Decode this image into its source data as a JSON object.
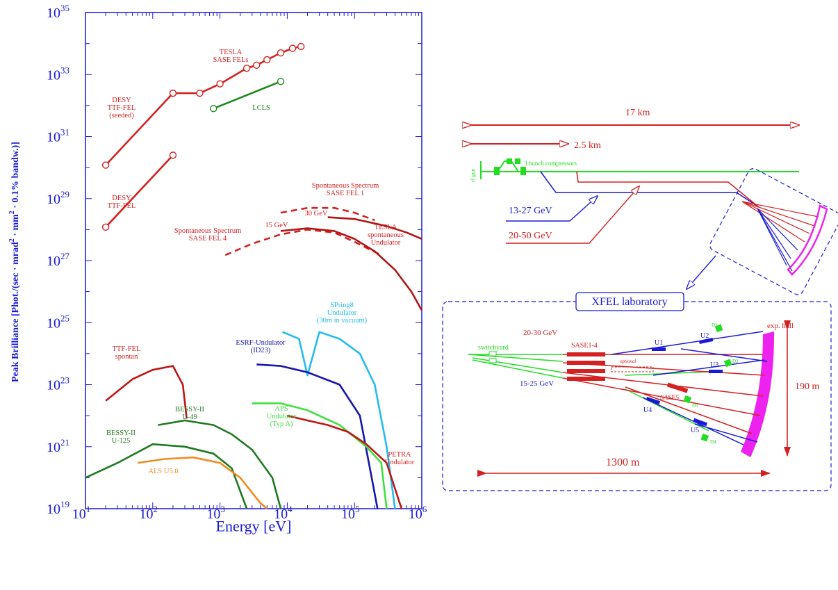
{
  "chart_data": [
    {
      "type": "line",
      "xlabel": "Energy [eV]",
      "ylabel": "Peak Brilliance [Phot./(sec · mrad",
      "ylabel_sup": "2",
      "ylabel_mid": " · mm",
      "ylabel_sup2": "2",
      "ylabel_end": " · 0.1% bandw.)]",
      "x_scale": "log",
      "y_scale": "log",
      "xlim": [
        10,
        1000000
      ],
      "ylim": [
        1e+19,
        1e+35
      ],
      "x_ticks": [
        {
          "base": "10",
          "exp": "1",
          "value": 10
        },
        {
          "base": "10",
          "exp": "2",
          "value": 100
        },
        {
          "base": "10",
          "exp": "3",
          "value": 1000
        },
        {
          "base": "10",
          "exp": "4",
          "value": 10000
        },
        {
          "base": "10",
          "exp": "5",
          "value": 100000
        },
        {
          "base": "10",
          "exp": "6",
          "value": 1000000
        }
      ],
      "y_ticks": [
        {
          "base": "10",
          "exp": "19",
          "value": 19
        },
        {
          "base": "10",
          "exp": "21",
          "value": 21
        },
        {
          "base": "10",
          "exp": "23",
          "value": 23
        },
        {
          "base": "10",
          "exp": "25",
          "value": 25
        },
        {
          "base": "10",
          "exp": "27",
          "value": 27
        },
        {
          "base": "10",
          "exp": "29",
          "value": 29
        },
        {
          "base": "10",
          "exp": "31",
          "value": 31
        },
        {
          "base": "10",
          "exp": "33",
          "value": 33
        },
        {
          "base": "10",
          "exp": "35",
          "value": 35
        }
      ],
      "series": [
        {
          "name": "TESLA SASE FELs",
          "color": "#d42020",
          "style": "solid",
          "markers": true,
          "points": [
            [
              200,
              2.5e+32
            ],
            [
              500,
              2.5e+32
            ],
            [
              1000,
              5e+32
            ],
            [
              2500,
              1.6e+33
            ],
            [
              3500,
              2e+33
            ],
            [
              5000,
              3e+33
            ],
            [
              8000,
              5e+33
            ],
            [
              12000,
              7e+33
            ],
            [
              16000,
              8e+33
            ]
          ]
        },
        {
          "name": "DESY TTF-FEL (seeded)",
          "color": "#d42020",
          "style": "solid",
          "markers": true,
          "points": [
            [
              20,
              1.2e+30
            ],
            [
              200,
              2.5e+32
            ]
          ]
        },
        {
          "name": "DESY TTF-FEL",
          "color": "#d42020",
          "style": "solid",
          "markers": true,
          "points": [
            [
              20,
              1.2e+28
            ],
            [
              200,
              2.5e+30
            ]
          ]
        },
        {
          "name": "LCLS",
          "color": "#1f8a1f",
          "style": "solid",
          "markers": true,
          "points": [
            [
              800,
              8e+31
            ],
            [
              8000,
              6e+32
            ]
          ]
        },
        {
          "name": "Spontaneous Spectrum SASE FEL 1",
          "color": "#d42020",
          "style": "dashed",
          "markers": false,
          "points": [
            [
              8000,
              3.5e+28
            ],
            [
              20000,
              5e+28
            ],
            [
              50000,
              5e+28
            ],
            [
              100000,
              3.5e+28
            ],
            [
              200000,
              2e+28
            ]
          ]
        },
        {
          "name": "Spontaneous Spectrum SASE FEL 4",
          "color": "#d42020",
          "style": "dashed",
          "markers": false,
          "points": [
            [
              1200,
              1.5e+27
            ],
            [
              3000,
              3.5e+27
            ],
            [
              8000,
              7e+27
            ],
            [
              20000,
              1e+28
            ],
            [
              50000,
              8e+27
            ],
            [
              100000,
              4e+27
            ],
            [
              250000,
              1.5e+27
            ]
          ]
        },
        {
          "name": "TESLA spontaneous Undulator (15 GeV)",
          "color": "#b01515",
          "style": "solid",
          "markers": false,
          "points": [
            [
              8000,
              9e+27
            ],
            [
              20000,
              1.1e+28
            ],
            [
              50000,
              9e+27
            ],
            [
              100000,
              5e+27
            ],
            [
              200000,
              2e+27
            ],
            [
              400000,
              5e+26
            ],
            [
              700000,
              1e+26
            ],
            [
              1000000,
              2.5e+25
            ]
          ]
        },
        {
          "name": "TESLA spontaneous Undulator (30 GeV)",
          "color": "#b01515",
          "style": "solid",
          "markers": false,
          "points": [
            [
              40000,
              2.5e+28
            ],
            [
              100000,
              2.2e+28
            ],
            [
              300000,
              1.3e+28
            ],
            [
              600000,
              8e+27
            ],
            [
              1000000,
              5e+27
            ]
          ]
        },
        {
          "name": "SPring8 Undulator (30m in vacuum)",
          "color": "#22bbee",
          "style": "solid",
          "markers": false,
          "points": [
            [
              8500,
              5e+24
            ],
            [
              15000,
              3e+24
            ],
            [
              20000,
              2e+23
            ],
            [
              30000,
              5e+24
            ],
            [
              60000,
              3e+24
            ],
            [
              120000,
              1e+24
            ],
            [
              200000,
              1e+23
            ],
            [
              300000,
              1e+21
            ],
            [
              400000,
              1e+19
            ]
          ]
        },
        {
          "name": "ESRF-Undulator (ID23)",
          "color": "#1515b0",
          "style": "solid",
          "markers": false,
          "points": [
            [
              3500,
              4.5e+23
            ],
            [
              8000,
              4e+23
            ],
            [
              20000,
              2.5e+23
            ],
            [
              60000,
              1e+23
            ],
            [
              120000,
              1e+22
            ],
            [
              180000,
              1e+20
            ],
            [
              220000,
              1e+19
            ]
          ]
        },
        {
          "name": "APS Undulator (Typ A)",
          "color": "#3ee03e",
          "style": "solid",
          "markers": false,
          "points": [
            [
              3000,
              2.5e+22
            ],
            [
              8000,
              2.5e+22
            ],
            [
              20000,
              1.5e+22
            ],
            [
              60000,
              5e+21
            ],
            [
              150000,
              1e+21
            ],
            [
              250000,
              3e+20
            ],
            [
              300000,
              1e+19
            ]
          ]
        },
        {
          "name": "PETRA Undulator",
          "color": "#c01515",
          "style": "solid",
          "markers": false,
          "points": [
            [
              10000,
              1e+22
            ],
            [
              20000,
              7e+21
            ],
            [
              40000,
              5e+21
            ],
            [
              80000,
              3e+21
            ],
            [
              150000,
              1.2e+21
            ],
            [
              300000,
              3e+20
            ],
            [
              500000,
              1e+19
            ]
          ]
        },
        {
          "name": "TTF-FEL spontan",
          "color": "#c01515",
          "style": "solid",
          "markers": false,
          "points": [
            [
              20,
              3e+22
            ],
            [
              50,
              1.5e+23
            ],
            [
              100,
              3e+23
            ],
            [
              200,
              4e+23
            ],
            [
              280,
              1e+23
            ],
            [
              320,
              8e+21
            ]
          ]
        },
        {
          "name": "BESSY-II U-49",
          "color": "#1f7a1f",
          "style": "solid",
          "markers": false,
          "points": [
            [
              120,
              5e+21
            ],
            [
              300,
              7e+21
            ],
            [
              800,
              5e+21
            ],
            [
              1500,
              2.5e+21
            ],
            [
              3000,
              8e+20
            ],
            [
              6000,
              1e+20
            ],
            [
              8000,
              1e+19
            ]
          ]
        },
        {
          "name": "BESSY-II U-125",
          "color": "#1f7a1f",
          "style": "solid",
          "markers": false,
          "points": [
            [
              10,
              1e+20
            ],
            [
              30,
              3e+20
            ],
            [
              100,
              1.2e+21
            ],
            [
              300,
              1e+21
            ],
            [
              800,
              6e+20
            ],
            [
              1500,
              2e+20
            ],
            [
              2500,
              1e+19
            ]
          ]
        },
        {
          "name": "ALS U5.0",
          "color": "#f08a20",
          "style": "solid",
          "markers": false,
          "points": [
            [
              60,
              3e+20
            ],
            [
              150,
              4e+20
            ],
            [
              400,
              4.5e+20
            ],
            [
              1000,
              3e+20
            ],
            [
              2000,
              1e+20
            ],
            [
              4000,
              1.5e+19
            ],
            [
              5000,
              1e+19
            ]
          ]
        }
      ],
      "annotations": [
        {
          "text": [
            "TESLA",
            "SASE FELs"
          ],
          "color": "#d42020"
        },
        {
          "text": [
            "DESY",
            "TTF-FEL",
            "(seeded)"
          ],
          "color": "#d42020"
        },
        {
          "text": [
            "LCLS"
          ],
          "color": "#1f8a1f"
        },
        {
          "text": [
            "DESY",
            "TTF-FEL"
          ],
          "color": "#d42020"
        },
        {
          "text": [
            "Spontaneous Spectrum",
            "SASE FEL 1"
          ],
          "color": "#d42020"
        },
        {
          "text": [
            "30 GeV"
          ],
          "color": "#d42020"
        },
        {
          "text": [
            "15 GeV"
          ],
          "color": "#d42020"
        },
        {
          "text": [
            "Spontaneous Spectrum",
            "SASE FEL 4"
          ],
          "color": "#d42020"
        },
        {
          "text": [
            "TESLA",
            "spontaneous",
            "Undulator"
          ],
          "color": "#d42020"
        },
        {
          "text": [
            "SPring8",
            "Undulator",
            "(30m in vacuum)"
          ],
          "color": "#22bbee"
        },
        {
          "text": [
            "ESRF-Undulator",
            "(ID23)"
          ],
          "color": "#1515b0"
        },
        {
          "text": [
            "TTF-FEL",
            "spontan"
          ],
          "color": "#d42020"
        },
        {
          "text": [
            "BESSY-II",
            "U-49"
          ],
          "color": "#1f7a1f"
        },
        {
          "text": [
            "APS",
            "Undulator",
            "(Typ A)"
          ],
          "color": "#3ee03e"
        },
        {
          "text": [
            "BESSY-II",
            "U-125"
          ],
          "color": "#1f7a1f"
        },
        {
          "text": [
            "PETRA",
            "Undulator"
          ],
          "color": "#d42020"
        },
        {
          "text": [
            "ALS U5.0"
          ],
          "color": "#f08a20"
        }
      ]
    }
  ],
  "overview": {
    "dist_17km": "17 km",
    "dist_2_5km": "2.5 km",
    "rf_gun": "rf gun",
    "bunch_compressors": "3 bunch compressors",
    "energy_blue": "13-27 GeV",
    "energy_red": "20-50 GeV"
  },
  "lab": {
    "title": "XFEL laboratory",
    "switchyard": "switchyard",
    "energy_red": "20-30 GeV",
    "energy_blue": "15-25 GeV",
    "sase14": "SASE1-4",
    "optional": "optional",
    "sase5": "SASE5",
    "exp_hall": "exp. hall",
    "height": "190 m",
    "width": "1300 m",
    "u1": "U1",
    "u2": "U2",
    "u3": "U3",
    "u4": "U4",
    "u5": "U5",
    "d1": "D1",
    "d2": "D2",
    "d3": "D3",
    "d4": "D4"
  },
  "colors": {
    "axis": "#1a1ad6",
    "red": "#d42020",
    "blue": "#1a1ad6",
    "green": "#22dd22",
    "magenta": "#ee22ee"
  }
}
